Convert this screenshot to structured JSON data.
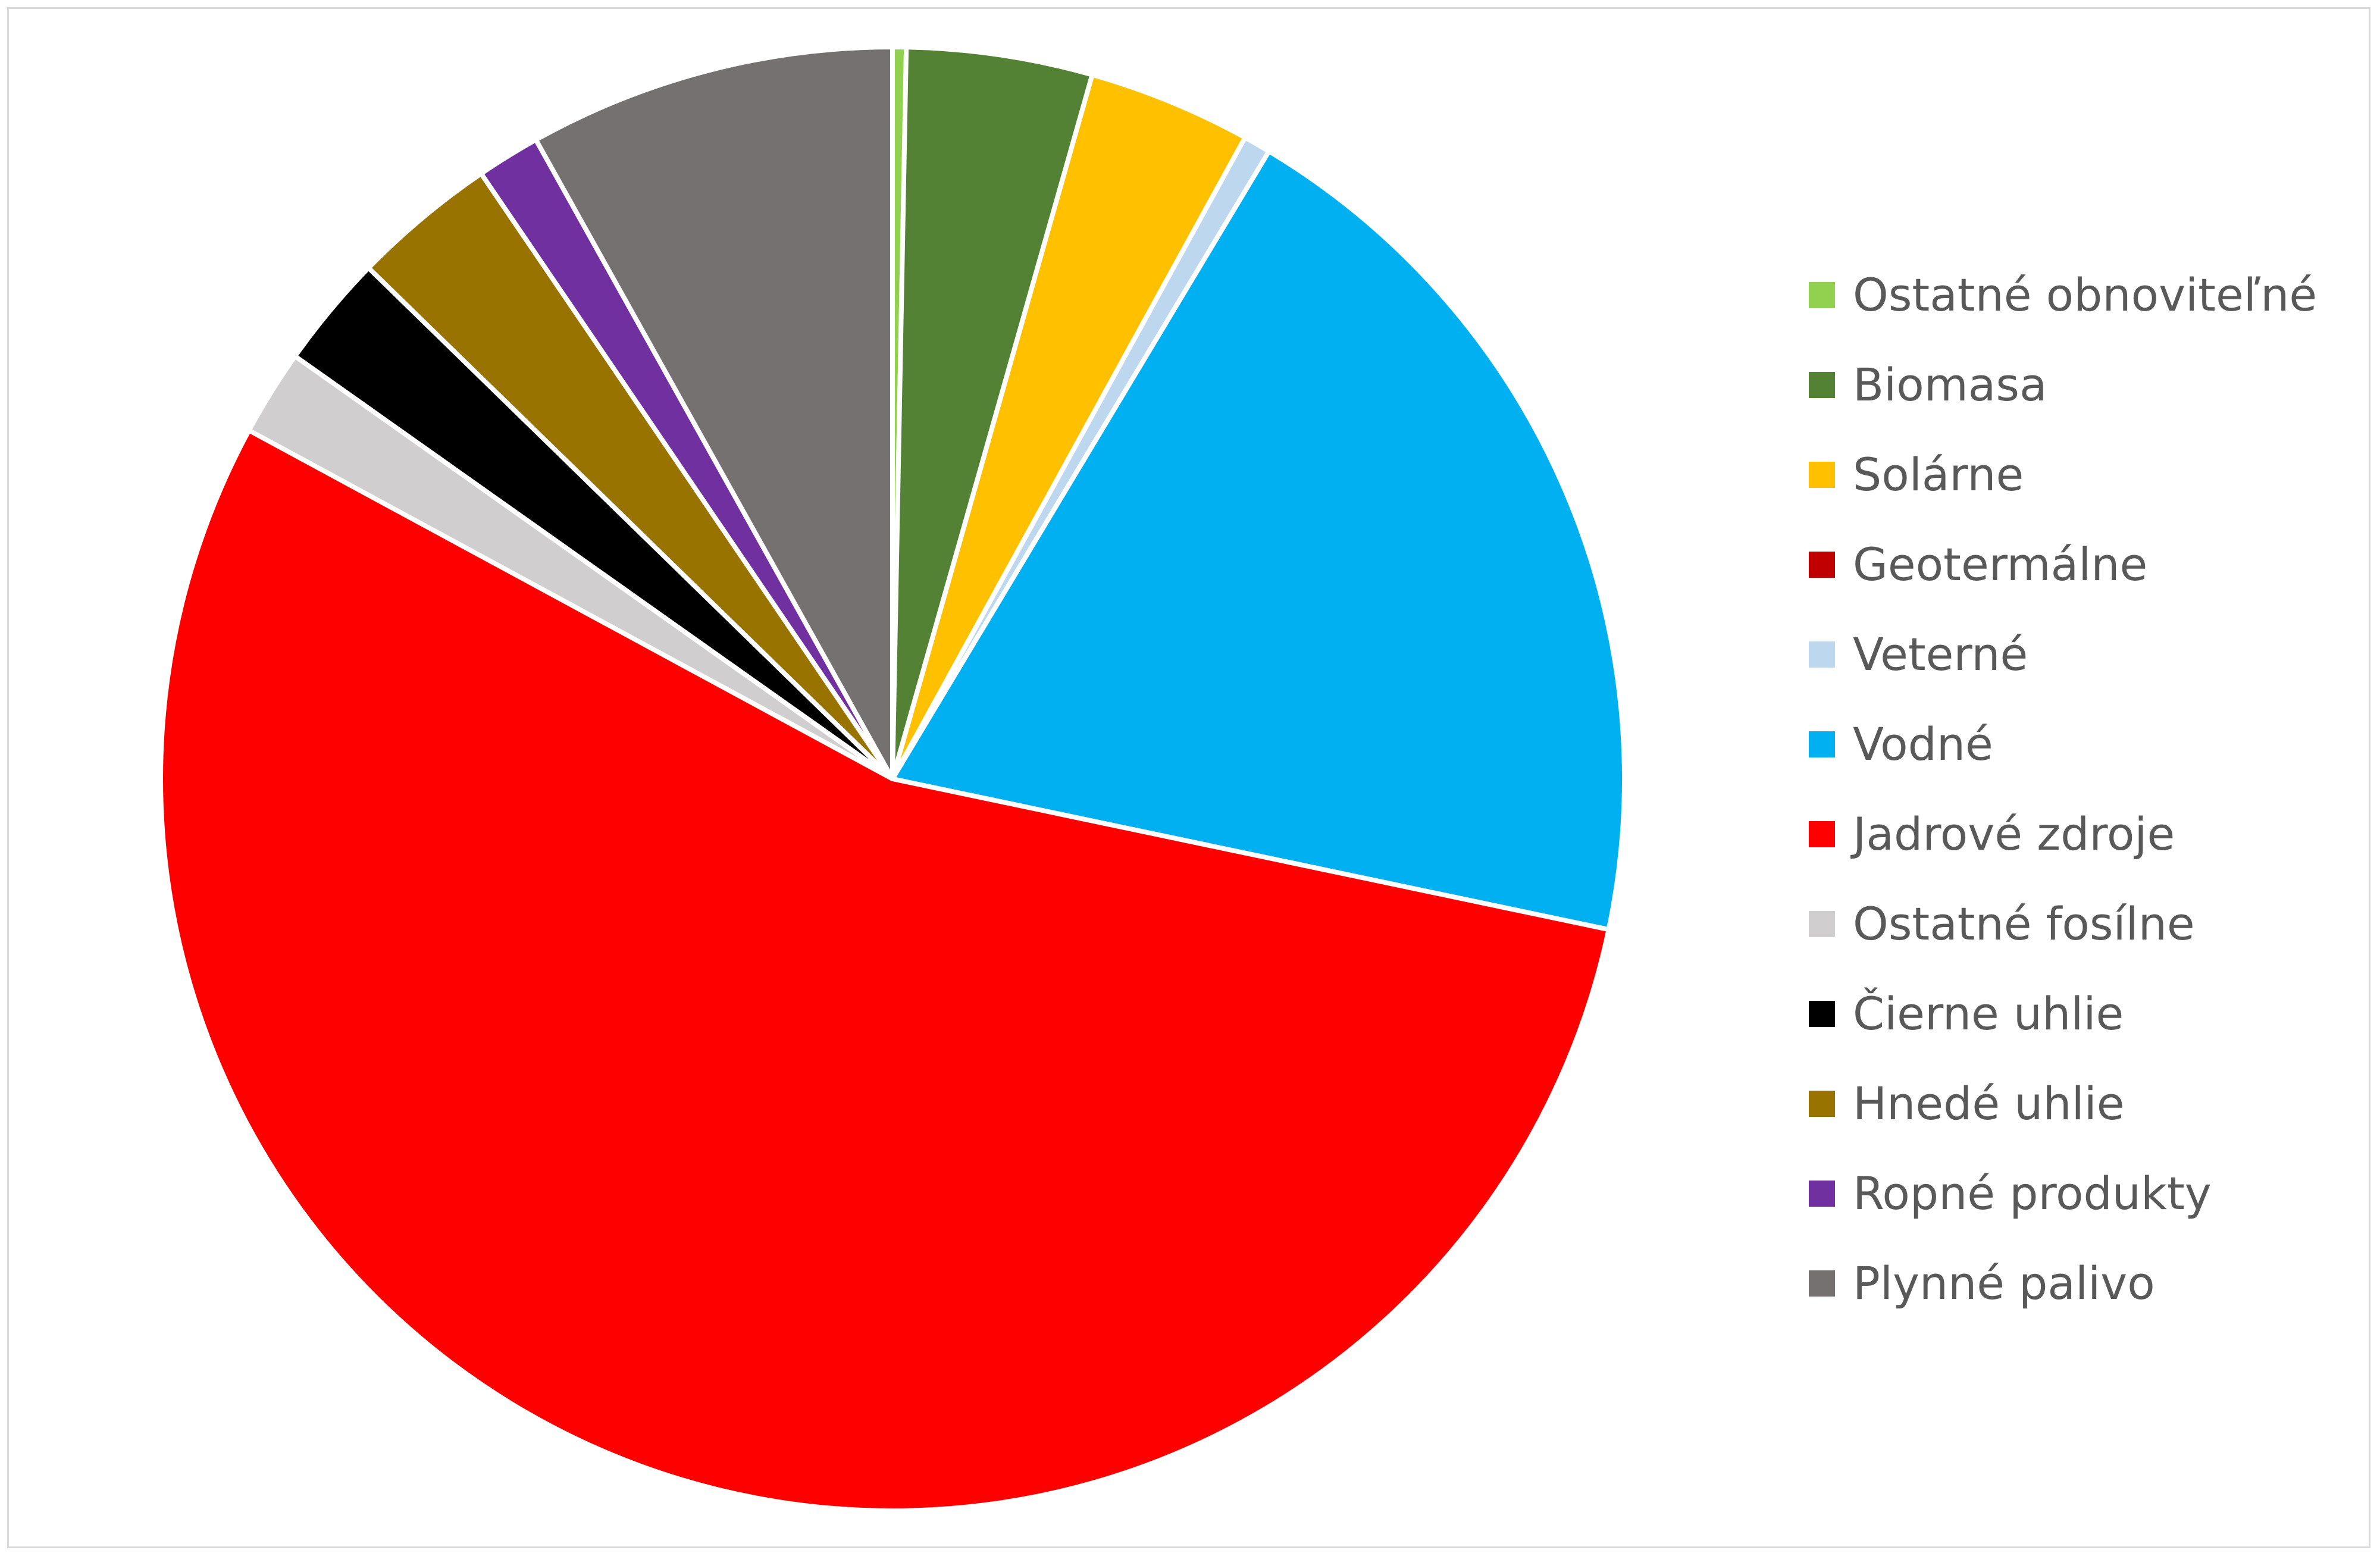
{
  "chart_data": {
    "type": "pie",
    "title": "",
    "start_angle": "top, clockwise",
    "legend_position": "right",
    "slices": [
      {
        "label": "Ostatné obnoviteľné",
        "value": 0.3,
        "color": "#92d050"
      },
      {
        "label": "Biomasa",
        "value": 4.1,
        "color": "#548235"
      },
      {
        "label": "Solárne",
        "value": 3.6,
        "color": "#ffc000"
      },
      {
        "label": "Geotermálne",
        "value": 0.0,
        "color": "#c00000"
      },
      {
        "label": "Veterné",
        "value": 0.6,
        "color": "#bdd7ee"
      },
      {
        "label": "Vodné",
        "value": 19.7,
        "color": "#00b0f0"
      },
      {
        "label": "Jadrové zdroje",
        "value": 54.6,
        "color": "#ff0000"
      },
      {
        "label": "Ostatné fosílne",
        "value": 1.9,
        "color": "#d0cece"
      },
      {
        "label": "Čierne uhlie",
        "value": 2.5,
        "color": "#000000"
      },
      {
        "label": "Hnedé uhlie",
        "value": 3.2,
        "color": "#997300"
      },
      {
        "label": "Ropné produkty",
        "value": 1.4,
        "color": "#7030a0"
      },
      {
        "label": "Plynné palivo",
        "value": 8.1,
        "color": "#767171"
      }
    ]
  }
}
